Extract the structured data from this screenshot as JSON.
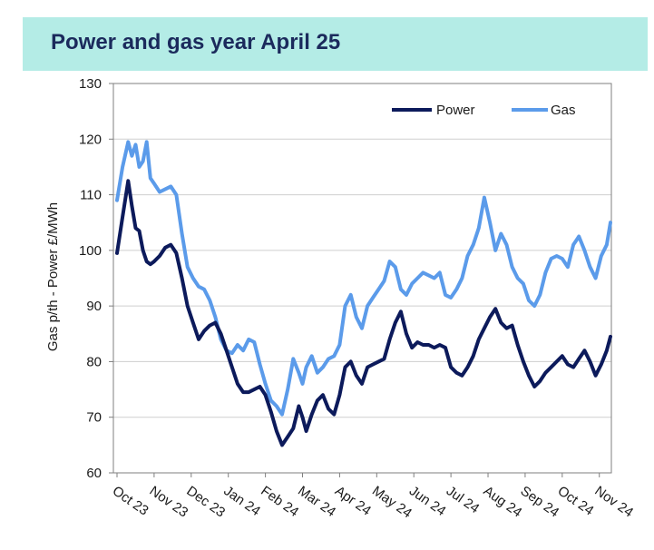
{
  "chart_data": {
    "type": "line",
    "title": "Power and gas year April 25",
    "xlabel": "",
    "ylabel": "Gas p/th - Power £/MWh",
    "ylim": [
      60,
      130
    ],
    "yticks": [
      60,
      70,
      80,
      90,
      100,
      110,
      120,
      130
    ],
    "grid": true,
    "legend_position": "top-right",
    "x_tick_labels": [
      "Oct 23",
      "Nov 23",
      "Dec 23",
      "Jan 24",
      "Feb 24",
      "Mar 24",
      "Apr 24",
      "May 24",
      "Jun 24",
      "Jul 24",
      "Aug 24",
      "Sep 24",
      "Oct 24",
      "Nov 24"
    ],
    "x_range": [
      0,
      13.3
    ],
    "series": [
      {
        "name": "Power",
        "color": "#0c1a5b",
        "x": [
          0,
          0.15,
          0.3,
          0.4,
          0.5,
          0.6,
          0.7,
          0.8,
          0.9,
          1.0,
          1.15,
          1.3,
          1.45,
          1.6,
          1.75,
          1.9,
          2.05,
          2.2,
          2.35,
          2.5,
          2.65,
          2.8,
          2.95,
          3.1,
          3.25,
          3.4,
          3.55,
          3.7,
          3.85,
          4.0,
          4.15,
          4.3,
          4.45,
          4.6,
          4.75,
          4.9,
          5.0,
          5.1,
          5.25,
          5.4,
          5.55,
          5.7,
          5.85,
          6.0,
          6.15,
          6.3,
          6.45,
          6.6,
          6.75,
          6.9,
          7.05,
          7.2,
          7.35,
          7.5,
          7.65,
          7.8,
          7.95,
          8.1,
          8.25,
          8.4,
          8.55,
          8.7,
          8.85,
          9.0,
          9.15,
          9.3,
          9.45,
          9.6,
          9.75,
          9.9,
          10.05,
          10.2,
          10.35,
          10.5,
          10.65,
          10.8,
          10.95,
          11.1,
          11.25,
          11.4,
          11.55,
          11.7,
          11.85,
          12.0,
          12.15,
          12.3,
          12.45,
          12.6,
          12.75,
          12.9,
          13.05,
          13.2,
          13.3
        ],
        "values": [
          99.5,
          106,
          112.5,
          108,
          104,
          103.5,
          100,
          98,
          97.5,
          98,
          99,
          100.5,
          101,
          99.5,
          95,
          90,
          87,
          84,
          85.5,
          86.5,
          87,
          85,
          82,
          79,
          76,
          74.5,
          74.5,
          75,
          75.5,
          74,
          71,
          67.5,
          65,
          66.5,
          68,
          72,
          70,
          67.5,
          70.5,
          73,
          74,
          71.5,
          70.5,
          74,
          79,
          80,
          77.5,
          76,
          79,
          79.5,
          80,
          80.5,
          84,
          87,
          89,
          85,
          82.5,
          83.5,
          83,
          83,
          82.5,
          83,
          82.5,
          79,
          78,
          77.5,
          79,
          81,
          84,
          86,
          88,
          89.5,
          87,
          86,
          86.5,
          83,
          80,
          77.5,
          75.5,
          76.5,
          78,
          79,
          80,
          81,
          79.5,
          79,
          80.5,
          82,
          80,
          77.5,
          79.5,
          82,
          84.5
        ]
      },
      {
        "name": "Gas",
        "color": "#5b9bea",
        "x": [
          0,
          0.15,
          0.3,
          0.4,
          0.5,
          0.6,
          0.7,
          0.8,
          0.9,
          1.0,
          1.15,
          1.3,
          1.45,
          1.6,
          1.75,
          1.9,
          2.05,
          2.2,
          2.35,
          2.5,
          2.65,
          2.8,
          2.95,
          3.1,
          3.25,
          3.4,
          3.55,
          3.7,
          3.85,
          4.0,
          4.15,
          4.3,
          4.45,
          4.6,
          4.75,
          4.9,
          5.0,
          5.1,
          5.25,
          5.4,
          5.55,
          5.7,
          5.85,
          6.0,
          6.15,
          6.3,
          6.45,
          6.6,
          6.75,
          6.9,
          7.05,
          7.2,
          7.35,
          7.5,
          7.65,
          7.8,
          7.95,
          8.1,
          8.25,
          8.4,
          8.55,
          8.7,
          8.85,
          9.0,
          9.15,
          9.3,
          9.45,
          9.6,
          9.75,
          9.9,
          10.05,
          10.2,
          10.35,
          10.5,
          10.65,
          10.8,
          10.95,
          11.1,
          11.25,
          11.4,
          11.55,
          11.7,
          11.85,
          12.0,
          12.15,
          12.3,
          12.45,
          12.6,
          12.75,
          12.9,
          13.05,
          13.2,
          13.3
        ],
        "values": [
          109,
          115,
          119.5,
          117,
          119,
          115,
          116,
          119.5,
          113,
          112,
          110.5,
          111,
          111.5,
          110,
          103,
          97,
          95,
          93.5,
          93,
          91,
          88,
          84,
          82,
          81.5,
          83,
          82,
          84,
          83.5,
          79.5,
          76,
          73,
          72,
          70.5,
          75,
          80.5,
          78,
          76,
          79,
          81,
          78,
          79,
          80.5,
          81,
          83,
          90,
          92,
          88,
          86,
          90,
          91.5,
          93,
          94.5,
          98,
          97,
          93,
          92,
          94,
          95,
          96,
          95.5,
          95,
          96,
          92,
          91.5,
          93,
          95,
          99,
          101,
          104,
          109.5,
          105,
          100,
          103,
          101,
          97,
          95,
          94,
          91,
          90,
          92,
          96,
          98.5,
          99,
          98.5,
          97,
          101,
          102.5,
          100,
          97,
          95,
          99,
          101,
          105
        ]
      }
    ]
  }
}
